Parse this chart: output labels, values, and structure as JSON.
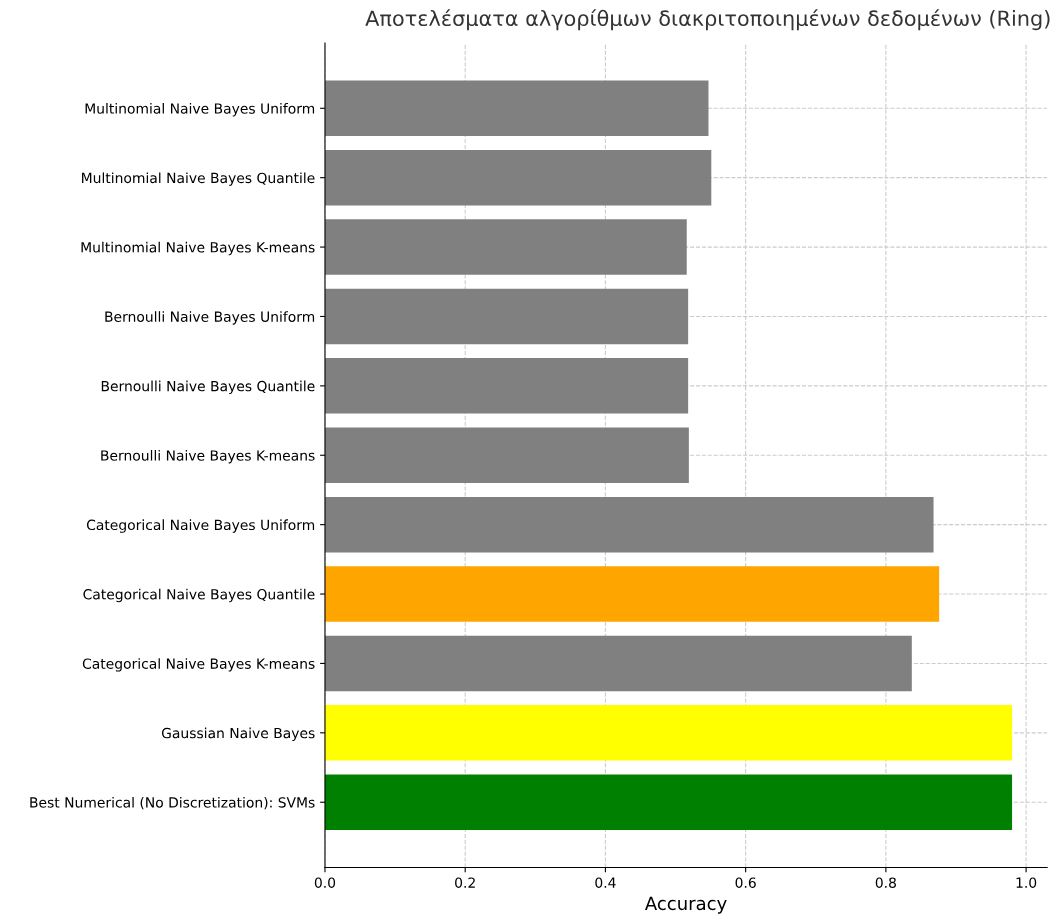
{
  "chart_data": {
    "type": "bar",
    "orientation": "horizontal",
    "title": "Αποτελέσματα αλγορίθμων διακριτοποιημένων δεδομένων (Ring)",
    "xlabel": "Accuracy",
    "categories": [
      "Multinomial Naive Bayes Uniform",
      "Multinomial Naive Bayes Quantile",
      "Multinomial Naive Bayes K-means",
      "Bernoulli Naive Bayes Uniform",
      "Bernoulli Naive Bayes Quantile",
      "Bernoulli Naive Bayes K-means",
      "Categorical Naive Bayes Uniform",
      "Categorical Naive Bayes Quantile",
      "Categorical Naive Bayes K-means",
      "Gaussian Naive Bayes",
      "Best Numerical (No Discretization): SVMs"
    ],
    "values": [
      0.547,
      0.551,
      0.516,
      0.518,
      0.518,
      0.519,
      0.868,
      0.876,
      0.837,
      0.98,
      0.98
    ],
    "colors": [
      "#808080",
      "#808080",
      "#808080",
      "#808080",
      "#808080",
      "#808080",
      "#808080",
      "#ffa500",
      "#808080",
      "#ffff00",
      "#008000"
    ],
    "xlim": [
      0,
      1.03
    ],
    "xticks": [
      {
        "value": 0,
        "label": "0.0"
      },
      {
        "value": 0.2,
        "label": "0.2"
      },
      {
        "value": 0.4,
        "label": "0.4"
      },
      {
        "value": 0.6,
        "label": "0.6"
      },
      {
        "value": 0.8,
        "label": "0.8"
      },
      {
        "value": 1.0,
        "label": "1.0"
      }
    ],
    "grid": true,
    "line_style": "dashed"
  }
}
